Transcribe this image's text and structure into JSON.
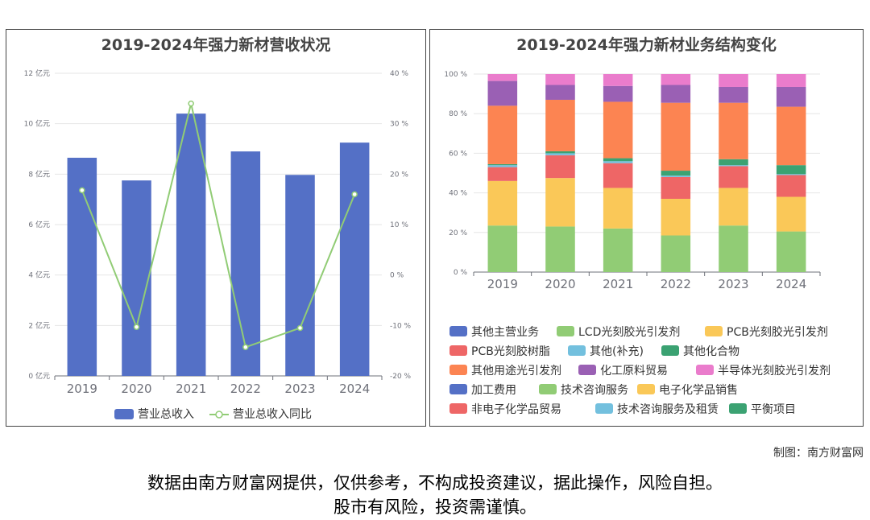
{
  "chart_data": [
    {
      "type": "bar",
      "title": "2019-2024年强力新材营收状况",
      "categories": [
        "2019",
        "2020",
        "2021",
        "2022",
        "2023",
        "2024"
      ],
      "y_left_ticks": [
        "0 亿元",
        "2 亿元",
        "4 亿元",
        "6 亿元",
        "8 亿元",
        "10 亿元",
        "12 亿元"
      ],
      "y_right_ticks": [
        "-20 %",
        "-10 %",
        "0 %",
        "10 %",
        "20 %",
        "30 %",
        "40 %"
      ],
      "ylim": [
        0,
        12
      ],
      "y2lim": [
        -20,
        40
      ],
      "series": [
        {
          "name": "营业总收入",
          "type": "bar",
          "axis": "left",
          "color": "#5470c6",
          "values": [
            8.65,
            7.75,
            10.4,
            8.9,
            7.97,
            9.25
          ]
        },
        {
          "name": "营业总收入同比",
          "type": "line",
          "axis": "right",
          "color": "#91cc75",
          "values": [
            16.8,
            -10.3,
            34.0,
            -14.3,
            -10.5,
            16.0
          ]
        }
      ],
      "legend_position": "bottom"
    },
    {
      "type": "bar",
      "stacked": true,
      "percent": true,
      "title": "2019-2024年强力新材业务结构变化",
      "categories": [
        "2019",
        "2020",
        "2021",
        "2022",
        "2023",
        "2024"
      ],
      "y_ticks": [
        "0 %",
        "20 %",
        "40 %",
        "60 %",
        "80 %",
        "100 %"
      ],
      "ylim": [
        0,
        100
      ],
      "series": [
        {
          "name": "其他主营业务",
          "color": "#5470c6",
          "values": [
            0,
            0,
            0,
            0,
            0,
            0
          ]
        },
        {
          "name": "LCD光刻胶光引发剂",
          "color": "#91cc75",
          "values": [
            23.5,
            23.0,
            22.0,
            18.5,
            23.5,
            20.5
          ]
        },
        {
          "name": "PCB光刻胶光引发剂",
          "color": "#fac858",
          "values": [
            22.5,
            24.5,
            20.5,
            18.5,
            19.0,
            17.5
          ]
        },
        {
          "name": "PCB光刻胶树脂",
          "color": "#ee6666",
          "values": [
            7.0,
            11.5,
            12.5,
            11.0,
            11.0,
            11.0
          ]
        },
        {
          "name": "其他(补充)",
          "color": "#73c0de",
          "values": [
            1.0,
            1.0,
            1.0,
            0.7,
            0.5,
            0.5
          ]
        },
        {
          "name": "其他化合物",
          "color": "#3ba272",
          "values": [
            0.5,
            1.0,
            1.5,
            2.5,
            3.0,
            4.5
          ]
        },
        {
          "name": "其他用途光引发剂",
          "color": "#fc8452",
          "values": [
            29.5,
            26.0,
            28.5,
            34.3,
            28.5,
            29.5
          ]
        },
        {
          "name": "化工原料贸易",
          "color": "#9a60b4",
          "values": [
            12.5,
            7.5,
            8.0,
            9.0,
            8.0,
            10.0
          ]
        },
        {
          "name": "半导体光刻胶光引发剂",
          "color": "#ea7ccc",
          "values": [
            3.5,
            5.5,
            6.0,
            5.5,
            6.5,
            6.5
          ]
        },
        {
          "name": "加工费用",
          "color": "#5470c6",
          "values": [
            0,
            0,
            0,
            0,
            0,
            0
          ]
        },
        {
          "name": "技术咨询服务",
          "color": "#91cc75",
          "values": [
            0,
            0,
            0,
            0,
            0,
            0
          ]
        },
        {
          "name": "电子化学品销售",
          "color": "#fac858",
          "values": [
            0,
            0,
            0,
            0,
            0,
            0
          ]
        },
        {
          "name": "非电子化学品贸易",
          "color": "#ee6666",
          "values": [
            0,
            0,
            0,
            0,
            0,
            0
          ]
        },
        {
          "name": "技术咨询服务及租赁",
          "color": "#73c0de",
          "values": [
            0,
            0,
            0,
            0,
            0,
            0
          ]
        },
        {
          "name": "平衡项目",
          "color": "#3ba272",
          "values": [
            0,
            0,
            0,
            0,
            0,
            0
          ]
        }
      ],
      "legend_position": "bottom"
    }
  ],
  "credit": "制图：南方财富网",
  "disclaimer": {
    "line1": "数据由南方财富网提供，仅供参考，不构成投资建议，据此操作，风险自担。",
    "line2": "股市有风险，投资需谨慎。"
  },
  "watermark": {
    "text": "南方财富网",
    "color": "#d9d9d9"
  }
}
